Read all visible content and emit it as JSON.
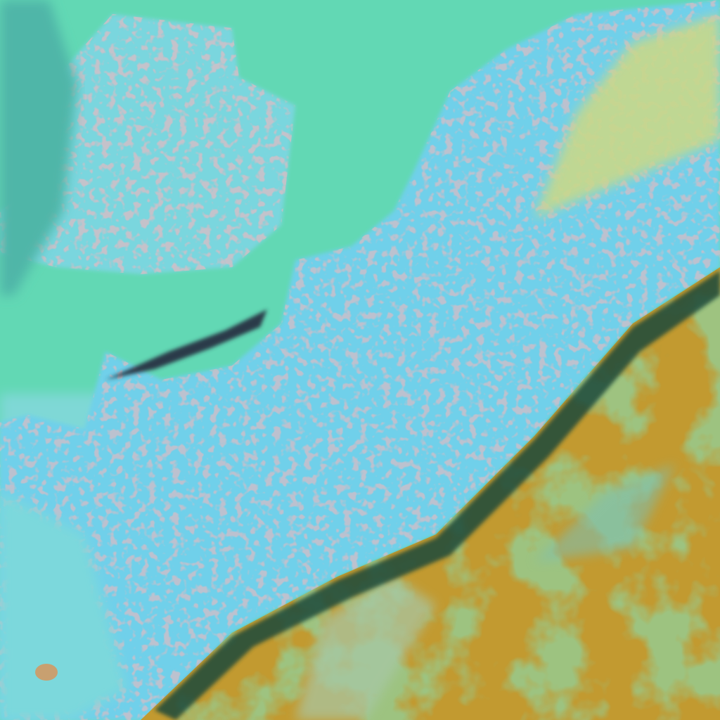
{
  "image": {
    "kind": "false-color satellite image",
    "colors": {
      "sea": "#62d8b4",
      "cloud_field": "#6fd6ea",
      "cloud_bright": "#8ee8f2",
      "cloud_cells": "#b88a8a",
      "land_orange": "#c89a2a",
      "land_green": "#4a9a3a",
      "ridge_dark": "#1f4a3a",
      "upper_right_haze": "#c8d88a"
    }
  }
}
